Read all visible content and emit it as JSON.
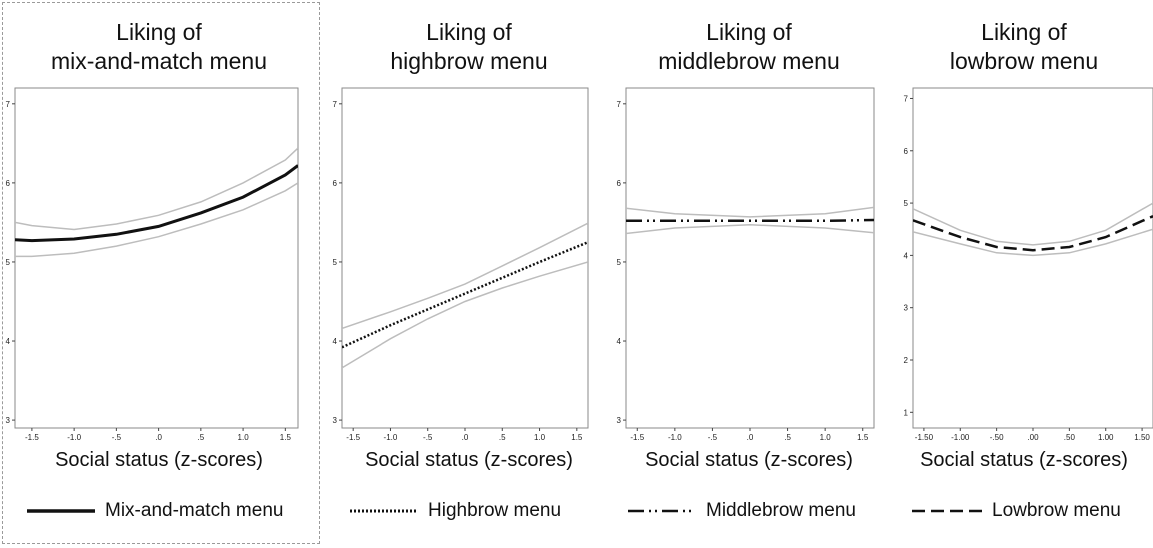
{
  "chart_data": [
    {
      "type": "line",
      "title": "Liking of\nmix-and-match  menu",
      "xlabel": "Social status (z-scores)",
      "ylabel": "",
      "xlim": [
        -1.7,
        1.65
      ],
      "ylim": [
        2.9,
        7.2
      ],
      "x_ticks": [
        -1.5,
        -1.0,
        -0.5,
        0.0,
        0.5,
        1.0,
        1.5
      ],
      "x_tick_labels": [
        "-1.5",
        "-1.0",
        "-.5",
        ".0",
        ".5",
        "1.0",
        "1.5"
      ],
      "y_ticks": [
        3,
        4,
        5,
        6,
        7
      ],
      "y_tick_labels": [
        "3",
        "4",
        "5",
        "6",
        "7"
      ],
      "grid": false,
      "series": [
        {
          "name": "Mix-and-match menu",
          "style": "solid",
          "x": [
            -1.7,
            -1.5,
            -1.0,
            -0.5,
            0.0,
            0.5,
            1.0,
            1.5,
            1.65
          ],
          "y": [
            5.28,
            5.27,
            5.29,
            5.35,
            5.45,
            5.62,
            5.82,
            6.1,
            6.22
          ],
          "ci_lower": [
            5.07,
            5.07,
            5.11,
            5.2,
            5.32,
            5.48,
            5.66,
            5.9,
            6.0
          ],
          "ci_upper": [
            5.5,
            5.46,
            5.41,
            5.48,
            5.59,
            5.76,
            6.0,
            6.29,
            6.44
          ]
        }
      ]
    },
    {
      "type": "line",
      "title": "Liking of\nhighbrow menu",
      "xlabel": "Social status (z-scores)",
      "ylabel": "",
      "xlim": [
        -1.65,
        1.65
      ],
      "ylim": [
        2.9,
        7.2
      ],
      "x_ticks": [
        -1.5,
        -1.0,
        -0.5,
        0.0,
        0.5,
        1.0,
        1.5
      ],
      "x_tick_labels": [
        "-1.5",
        "-1.0",
        "-.5",
        ".0",
        ".5",
        "1.0",
        "1.5"
      ],
      "y_ticks": [
        3,
        4,
        5,
        6,
        7
      ],
      "y_tick_labels": [
        "3",
        "4",
        "5",
        "6",
        "7"
      ],
      "grid": false,
      "series": [
        {
          "name": "Highbrow menu",
          "style": "dotted",
          "x": [
            -1.65,
            -1.0,
            -0.5,
            0.0,
            0.5,
            1.0,
            1.65
          ],
          "y": [
            3.92,
            4.2,
            4.4,
            4.6,
            4.8,
            5.0,
            5.25
          ],
          "ci_lower": [
            3.66,
            4.03,
            4.28,
            4.5,
            4.67,
            4.82,
            5.0
          ],
          "ci_upper": [
            4.16,
            4.37,
            4.54,
            4.72,
            4.95,
            5.18,
            5.49
          ]
        }
      ]
    },
    {
      "type": "line",
      "title": "Liking of\nmiddlebrow  menu",
      "xlabel": "Social status (z-scores)",
      "ylabel": "",
      "xlim": [
        -1.65,
        1.65
      ],
      "ylim": [
        2.9,
        7.2
      ],
      "x_ticks": [
        -1.5,
        -1.0,
        -0.5,
        0.0,
        0.5,
        1.0,
        1.5
      ],
      "x_tick_labels": [
        "-1.5",
        "-1.0",
        "-.5",
        ".0",
        ".5",
        "1.0",
        "1.5"
      ],
      "y_ticks": [
        3,
        4,
        5,
        6,
        7
      ],
      "y_tick_labels": [
        "3",
        "4",
        "5",
        "6",
        "7"
      ],
      "grid": false,
      "series": [
        {
          "name": "Middlebrow menu",
          "style": "dashdot",
          "x": [
            -1.65,
            -1.0,
            0.0,
            1.0,
            1.65
          ],
          "y": [
            5.52,
            5.52,
            5.52,
            5.52,
            5.53
          ],
          "ci_lower": [
            5.36,
            5.43,
            5.47,
            5.43,
            5.37
          ],
          "ci_upper": [
            5.68,
            5.61,
            5.57,
            5.61,
            5.69
          ]
        }
      ]
    },
    {
      "type": "line",
      "title": "Liking of\nlowbrow menu",
      "xlabel": "Social status (z-scores)",
      "ylabel": "",
      "xlim": [
        -1.65,
        1.65
      ],
      "ylim": [
        0.7,
        7.2
      ],
      "x_ticks": [
        -1.5,
        -1.0,
        -0.5,
        0.0,
        0.5,
        1.0,
        1.5
      ],
      "x_tick_labels": [
        "-1.50",
        "-1.00",
        "-.50",
        ".00",
        ".50",
        "1.00",
        "1.50"
      ],
      "y_ticks": [
        1,
        2,
        3,
        4,
        5,
        6,
        7
      ],
      "y_tick_labels": [
        "1",
        "2",
        "3",
        "4",
        "5",
        "6",
        "7"
      ],
      "grid": false,
      "series": [
        {
          "name": "Lowbrow menu",
          "style": "dashed",
          "x": [
            -1.65,
            -1.0,
            -0.5,
            0.0,
            0.5,
            1.0,
            1.65
          ],
          "y": [
            4.67,
            4.35,
            4.16,
            4.1,
            4.16,
            4.35,
            4.75
          ],
          "ci_lower": [
            4.45,
            4.22,
            4.05,
            4.0,
            4.05,
            4.22,
            4.5
          ],
          "ci_upper": [
            4.89,
            4.48,
            4.27,
            4.2,
            4.27,
            4.48,
            5.0
          ]
        }
      ]
    }
  ],
  "colors": {
    "line": "#111111",
    "ci": "#bdbdbd",
    "frame": "#8a8a8a"
  }
}
